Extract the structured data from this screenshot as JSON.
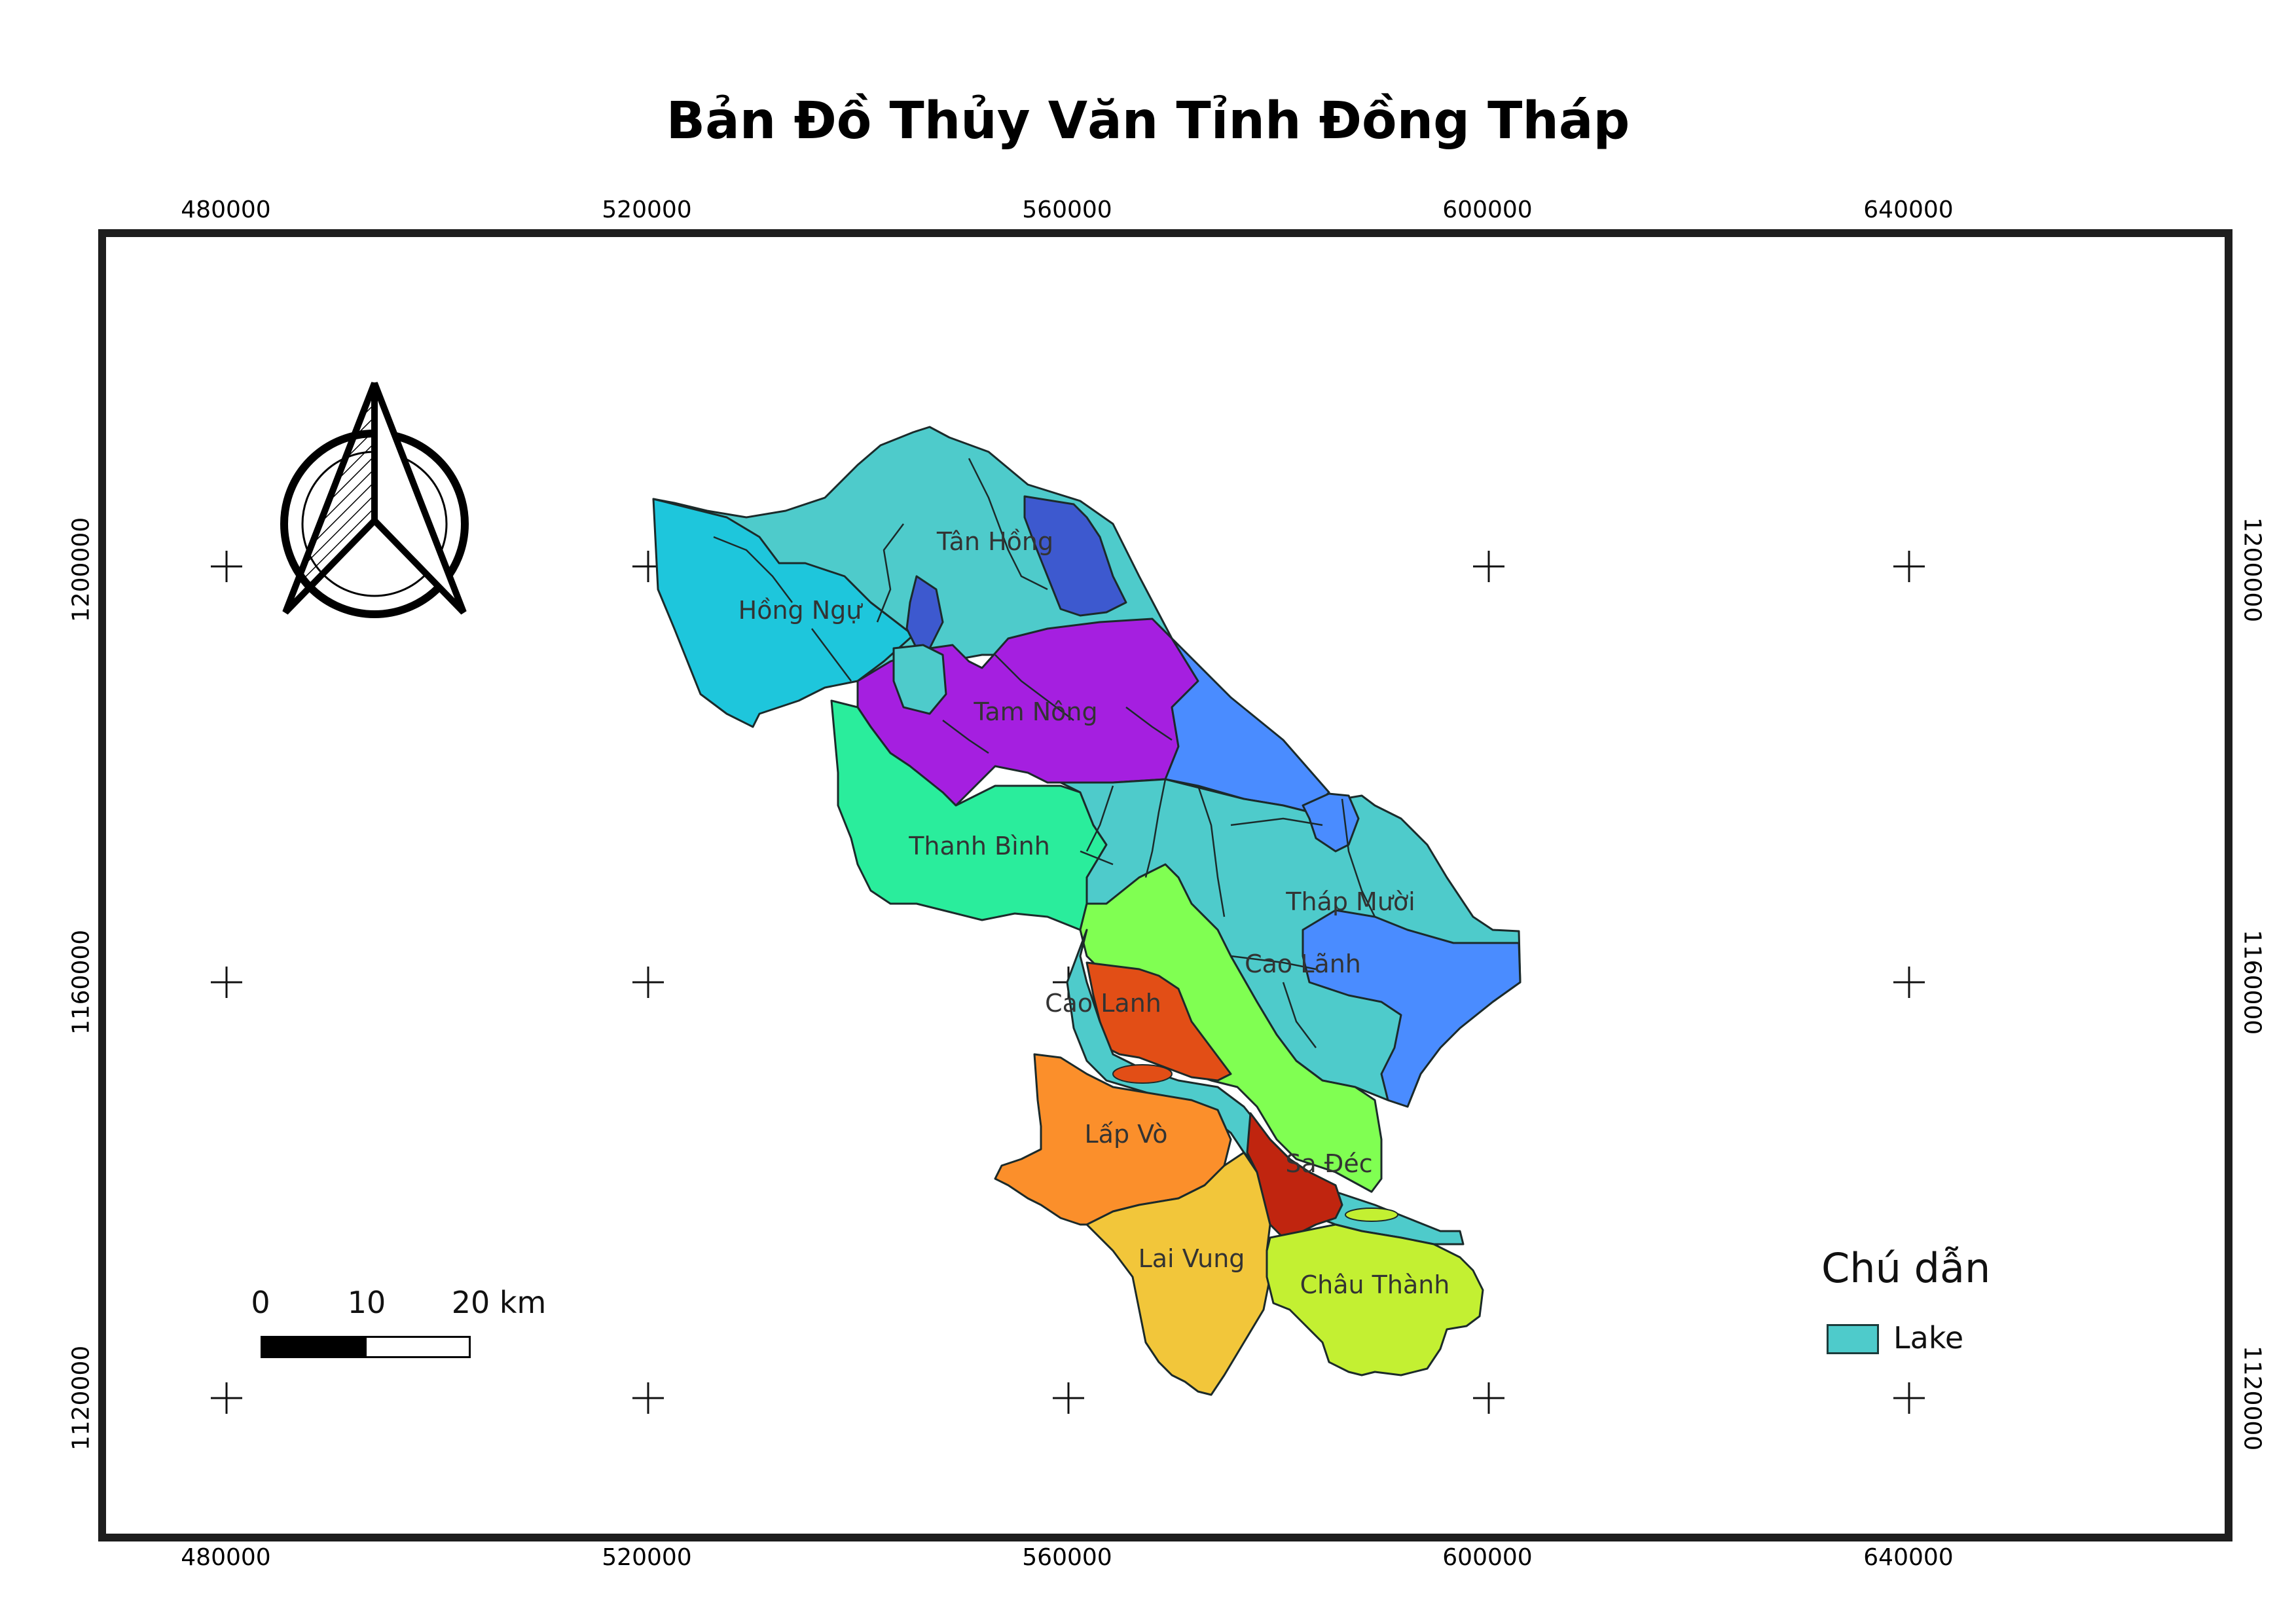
{
  "title": "Bản Đồ Thủy Văn Tỉnh Đồng Tháp",
  "x_ticks": [
    "480000",
    "520000",
    "560000",
    "600000",
    "640000"
  ],
  "y_ticks": [
    "1200000",
    "1160000",
    "1120000"
  ],
  "districts": [
    {
      "name": "Tân Hồng",
      "color": "#4ecbcb"
    },
    {
      "name": "Hồng Ngự",
      "color": "#1ec6dc"
    },
    {
      "name": "Tam Nông",
      "color": "#a51fe0"
    },
    {
      "name": "Thanh Bình",
      "color": "#2aed9c"
    },
    {
      "name": "Tháp Mười",
      "color": "#4ecbcb"
    },
    {
      "name": "Cao Lãnh",
      "color": "#80ff52"
    },
    {
      "name": "Cao Lanh",
      "color": "#e24e16"
    },
    {
      "name": "Lấp Vò",
      "color": "#fb8f2b"
    },
    {
      "name": "Sa Đéc",
      "color": "#c0250f"
    },
    {
      "name": "Lai Vung",
      "color": "#f2c63a"
    },
    {
      "name": "Châu Thành",
      "color": "#c3f032"
    }
  ],
  "colors": {
    "dark_blue": "#3d59cf",
    "blue": "#4a8cff",
    "lake": "#4ecbcb",
    "frame": "#1e1e1e"
  },
  "legend": {
    "title": "Chú dẫn",
    "items": [
      {
        "label": "Lake",
        "color": "#4ecbcb"
      }
    ]
  },
  "scale_bar": {
    "labels": [
      "0",
      "10",
      "20 km"
    ]
  },
  "north_arrow": {
    "icon": "north-arrow-icon"
  }
}
